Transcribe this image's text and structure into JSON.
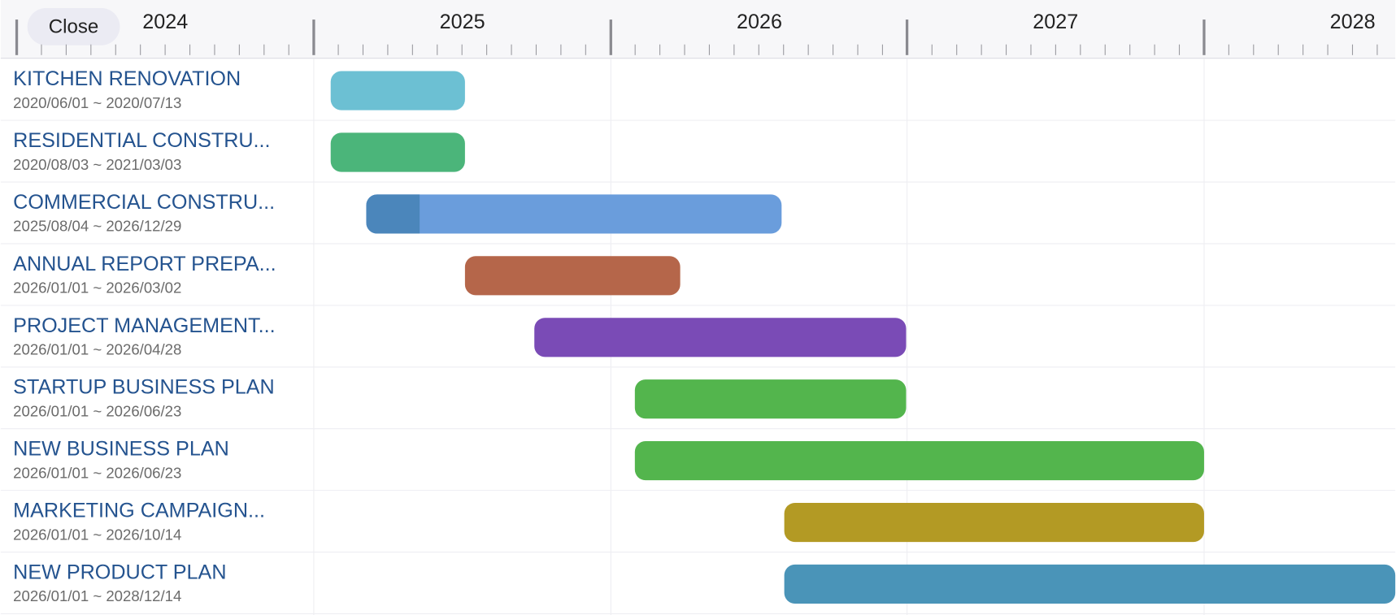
{
  "header": {
    "close_button": "Close",
    "years": [
      "2024",
      "2025",
      "2026",
      "2027",
      "2028"
    ]
  },
  "tasks": [
    {
      "title": "KITCHEN RENOVATION",
      "dates": "2020/06/01 ~ 2020/07/13"
    },
    {
      "title": "RESIDENTIAL CONSTRU...",
      "dates": "2020/08/03 ~ 2021/03/03"
    },
    {
      "title": "COMMERCIAL CONSTRU...",
      "dates": "2025/08/04 ~ 2026/12/29"
    },
    {
      "title": "ANNUAL REPORT PREPA...",
      "dates": "2026/01/01 ~ 2026/03/02"
    },
    {
      "title": "PROJECT MANAGEMENT...",
      "dates": "2026/01/01 ~ 2026/04/28"
    },
    {
      "title": "STARTUP BUSINESS PLAN",
      "dates": "2026/01/01 ~ 2026/06/23"
    },
    {
      "title": "NEW BUSINESS PLAN",
      "dates": "2026/01/01 ~ 2026/06/23"
    },
    {
      "title": "MARKETING CAMPAIGN...",
      "dates": "2026/01/01 ~ 2026/10/14"
    },
    {
      "title": "NEW PRODUCT PLAN",
      "dates": "2026/01/01 ~ 2028/12/14"
    }
  ]
}
